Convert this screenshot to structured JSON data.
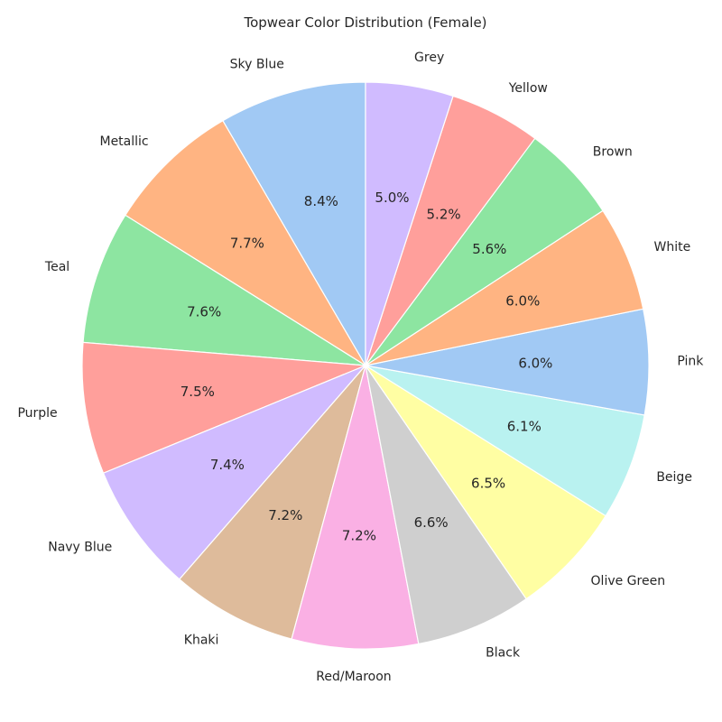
{
  "chart_data": {
    "type": "pie",
    "title": "Topwear Color Distribution (Female)",
    "start_angle_deg": 90,
    "direction": "counterclockwise",
    "slices": [
      {
        "label": "Sky Blue",
        "value": 8.4,
        "pct_text": "8.4%",
        "color": "#a1c9f4"
      },
      {
        "label": "Metallic",
        "value": 7.7,
        "pct_text": "7.7%",
        "color": "#ffb482"
      },
      {
        "label": "Teal",
        "value": 7.6,
        "pct_text": "7.6%",
        "color": "#8de5a1"
      },
      {
        "label": "Purple",
        "value": 7.5,
        "pct_text": "7.5%",
        "color": "#ff9f9b"
      },
      {
        "label": "Navy Blue",
        "value": 7.4,
        "pct_text": "7.4%",
        "color": "#d0bbff"
      },
      {
        "label": "Khaki",
        "value": 7.2,
        "pct_text": "7.2%",
        "color": "#debb9b"
      },
      {
        "label": "Red/Maroon",
        "value": 7.2,
        "pct_text": "7.2%",
        "color": "#fab0e4"
      },
      {
        "label": "Black",
        "value": 6.6,
        "pct_text": "6.6%",
        "color": "#cfcfcf"
      },
      {
        "label": "Olive Green",
        "value": 6.5,
        "pct_text": "6.5%",
        "color": "#fffea3"
      },
      {
        "label": "Beige",
        "value": 6.1,
        "pct_text": "6.1%",
        "color": "#b9f2f0"
      },
      {
        "label": "Pink",
        "value": 6.0,
        "pct_text": "6.0%",
        "color": "#a1c9f4"
      },
      {
        "label": "White",
        "value": 6.0,
        "pct_text": "6.0%",
        "color": "#ffb482"
      },
      {
        "label": "Brown",
        "value": 5.6,
        "pct_text": "5.6%",
        "color": "#8de5a1"
      },
      {
        "label": "Yellow",
        "value": 5.2,
        "pct_text": "5.2%",
        "color": "#ff9f9b"
      },
      {
        "label": "Grey",
        "value": 5.0,
        "pct_text": "5.0%",
        "color": "#d0bbff"
      }
    ]
  }
}
